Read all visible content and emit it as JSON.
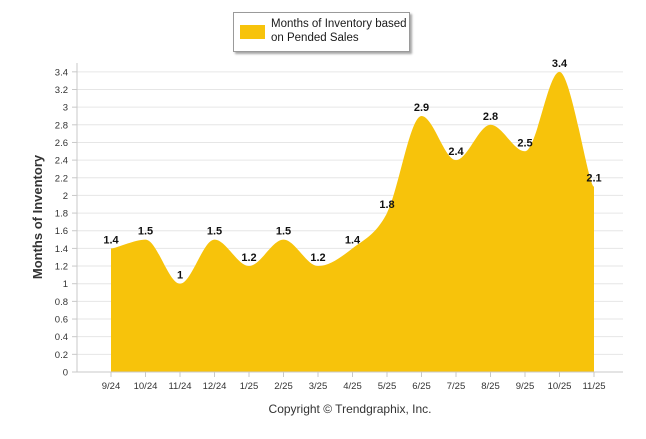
{
  "chart_data": {
    "type": "area",
    "title": "",
    "xlabel": "",
    "ylabel": "Months of Inventory",
    "ylim": [
      0,
      3.5
    ],
    "ytick_step": 0.2,
    "categories": [
      "9/24",
      "10/24",
      "11/24",
      "12/24",
      "1/25",
      "2/25",
      "3/25",
      "4/25",
      "5/25",
      "6/25",
      "7/25",
      "8/25",
      "9/25",
      "10/25",
      "11/25"
    ],
    "series": [
      {
        "name": "Months of Inventory based on Pended Sales",
        "values": [
          1.4,
          1.5,
          1,
          1.5,
          1.2,
          1.5,
          1.2,
          1.4,
          1.8,
          2.9,
          2.4,
          2.8,
          2.5,
          3.4,
          2.1
        ],
        "labels": [
          "1.4",
          "1.5",
          "1",
          "1.5",
          "1.2",
          "1.5",
          "1.2",
          "1.4",
          "1.8",
          "2.9",
          "2.4",
          "2.8",
          "2.5",
          "3.4",
          "2.1"
        ]
      }
    ],
    "legend": {
      "label": "Months of Inventory based on Pended Sales",
      "position": "top-center"
    },
    "grid": true
  },
  "copyright": "Copyright © Trendgraphix, Inc.",
  "colors": {
    "fill": "#f7c30b",
    "grid": "#e6e6e6",
    "axis": "#c9c9c9",
    "text": "#333333"
  }
}
